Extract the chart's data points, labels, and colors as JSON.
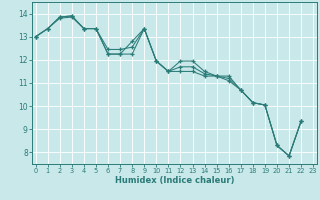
{
  "xlabel": "Humidex (Indice chaleur)",
  "xlim": [
    -0.3,
    23.3
  ],
  "ylim": [
    7.5,
    14.5
  ],
  "xticks": [
    0,
    1,
    2,
    3,
    4,
    5,
    6,
    7,
    8,
    9,
    10,
    11,
    12,
    13,
    14,
    15,
    16,
    17,
    18,
    19,
    20,
    21,
    22,
    23
  ],
  "yticks": [
    8,
    9,
    10,
    11,
    12,
    13,
    14
  ],
  "bg_color": "#c8e8ea",
  "line_color": "#2b7b78",
  "grid_color": "#ffffff",
  "line1_x": [
    0,
    1,
    2,
    3,
    4,
    5,
    6,
    7,
    8,
    9,
    10,
    11,
    12,
    13,
    14,
    15,
    16,
    17,
    18,
    19,
    20,
    21,
    22
  ],
  "line1_y": [
    13.0,
    13.35,
    13.85,
    13.9,
    13.35,
    13.35,
    12.25,
    12.25,
    12.25,
    13.35,
    11.95,
    11.5,
    11.95,
    11.95,
    11.5,
    11.3,
    11.1,
    10.7,
    10.15,
    10.05,
    8.3,
    7.85,
    9.35
  ],
  "line2_x": [
    0,
    1,
    2,
    3,
    4,
    5,
    6,
    7,
    8,
    9,
    10,
    11,
    12,
    13,
    14,
    15,
    16,
    17,
    18,
    19,
    20,
    21,
    22
  ],
  "line2_y": [
    13.0,
    13.35,
    13.8,
    13.85,
    13.35,
    13.35,
    12.25,
    12.25,
    12.8,
    13.35,
    11.95,
    11.5,
    11.5,
    11.5,
    11.3,
    11.3,
    11.3,
    10.7,
    10.15,
    10.05,
    8.3,
    7.85,
    9.35
  ],
  "line3_x": [
    0,
    1,
    2,
    3,
    4,
    5,
    6,
    7,
    8,
    9,
    10,
    11,
    12,
    13,
    14,
    15,
    16,
    17,
    18,
    19,
    20,
    21,
    22
  ],
  "line3_y": [
    13.0,
    13.35,
    13.85,
    13.9,
    13.35,
    13.35,
    12.45,
    12.45,
    12.55,
    13.35,
    11.95,
    11.5,
    11.7,
    11.7,
    11.4,
    11.3,
    11.2,
    10.7,
    10.15,
    10.05,
    8.3,
    7.85,
    9.35
  ]
}
